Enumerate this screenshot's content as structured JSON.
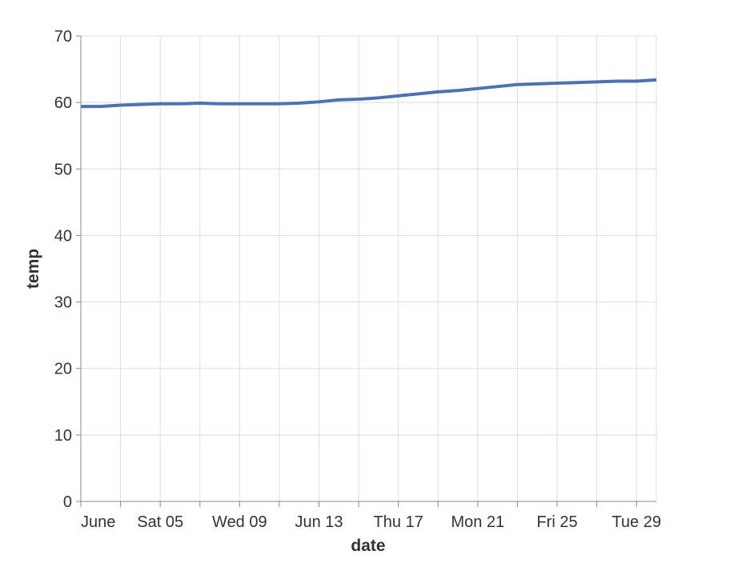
{
  "chart_data": {
    "type": "line",
    "title": "",
    "xlabel": "date",
    "ylabel": "temp",
    "grid": true,
    "legend": "none",
    "xlim": [
      "2021-06-01",
      "2021-06-30"
    ],
    "ylim": [
      0,
      70
    ],
    "y_ticks": [
      0,
      10,
      20,
      30,
      40,
      50,
      60,
      70
    ],
    "x_ticks": [
      {
        "date": "2021-06-01",
        "label": "June"
      },
      {
        "date": "2021-06-03",
        "label": ""
      },
      {
        "date": "2021-06-05",
        "label": "Sat 05"
      },
      {
        "date": "2021-06-07",
        "label": ""
      },
      {
        "date": "2021-06-09",
        "label": "Wed 09"
      },
      {
        "date": "2021-06-11",
        "label": ""
      },
      {
        "date": "2021-06-13",
        "label": "Jun 13"
      },
      {
        "date": "2021-06-15",
        "label": ""
      },
      {
        "date": "2021-06-17",
        "label": "Thu 17"
      },
      {
        "date": "2021-06-19",
        "label": ""
      },
      {
        "date": "2021-06-21",
        "label": "Mon 21"
      },
      {
        "date": "2021-06-23",
        "label": ""
      },
      {
        "date": "2021-06-25",
        "label": "Fri 25"
      },
      {
        "date": "2021-06-27",
        "label": ""
      },
      {
        "date": "2021-06-29",
        "label": "Tue 29"
      }
    ],
    "series": [
      {
        "color": "#4c72b0",
        "x": [
          "2021-06-01",
          "2021-06-02",
          "2021-06-03",
          "2021-06-04",
          "2021-06-05",
          "2021-06-06",
          "2021-06-07",
          "2021-06-08",
          "2021-06-09",
          "2021-06-10",
          "2021-06-11",
          "2021-06-12",
          "2021-06-13",
          "2021-06-14",
          "2021-06-15",
          "2021-06-16",
          "2021-06-17",
          "2021-06-18",
          "2021-06-19",
          "2021-06-20",
          "2021-06-21",
          "2021-06-22",
          "2021-06-23",
          "2021-06-24",
          "2021-06-25",
          "2021-06-26",
          "2021-06-27",
          "2021-06-28",
          "2021-06-29",
          "2021-06-30"
        ],
        "values": [
          59.4,
          59.4,
          59.6,
          59.7,
          59.8,
          59.8,
          59.9,
          59.8,
          59.8,
          59.8,
          59.8,
          59.9,
          60.1,
          60.4,
          60.5,
          60.7,
          61.0,
          61.3,
          61.6,
          61.8,
          62.1,
          62.4,
          62.7,
          62.8,
          62.9,
          63.0,
          63.1,
          63.2,
          63.2,
          63.4
        ]
      }
    ]
  }
}
